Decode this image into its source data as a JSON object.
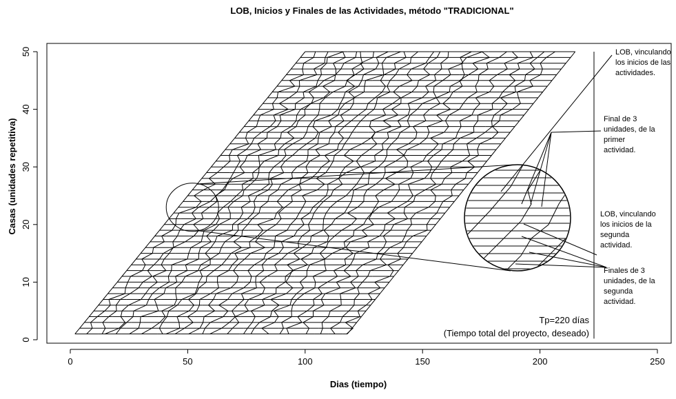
{
  "chart_data": {
    "type": "line",
    "title": "LOB, Inicios y Finales de las Actividades, método \"TRADICIONAL\"",
    "xlabel": "Dias (tiempo)",
    "ylabel": "Casas (unidades repetitiva)",
    "xlim": [
      -10,
      255
    ],
    "ylim": [
      -1,
      51
    ],
    "xticks": [
      0,
      50,
      100,
      150,
      200,
      250
    ],
    "yticks": [
      0,
      10,
      20,
      30,
      40,
      50
    ],
    "grid": false,
    "units": {
      "y_start": 1,
      "y_end": 50
    },
    "activities_start": [
      {
        "x_first": 2,
        "x_last": 100
      },
      {
        "x_first": 7,
        "x_last": 105
      },
      {
        "x_first": 12,
        "x_last": 110
      },
      {
        "x_first": 17,
        "x_last": 114
      },
      {
        "x_first": 22,
        "x_last": 118
      },
      {
        "x_first": 27,
        "x_last": 122
      },
      {
        "x_first": 32,
        "x_last": 126
      },
      {
        "x_first": 37,
        "x_last": 130
      },
      {
        "x_first": 42,
        "x_last": 134
      },
      {
        "x_first": 47,
        "x_last": 138
      },
      {
        "x_first": 52,
        "x_last": 143
      },
      {
        "x_first": 57,
        "x_last": 148
      },
      {
        "x_first": 62,
        "x_last": 153
      },
      {
        "x_first": 67,
        "x_last": 158
      },
      {
        "x_first": 72,
        "x_last": 163
      },
      {
        "x_first": 77,
        "x_last": 168
      },
      {
        "x_first": 82,
        "x_last": 173
      },
      {
        "x_first": 87,
        "x_last": 178
      },
      {
        "x_first": 92,
        "x_last": 184
      },
      {
        "x_first": 98,
        "x_last": 190
      },
      {
        "x_first": 104,
        "x_last": 196
      },
      {
        "x_first": 110,
        "x_last": 201
      },
      {
        "x_first": 116,
        "x_last": 206
      }
    ],
    "last_activity_end": {
      "x_first": 118,
      "x_last": 215
    },
    "annotations": [
      {
        "lines": [
          "LOB, vinculando",
          "los  inicios de las",
          "actividades."
        ]
      },
      {
        "lines": [
          "Final de 3",
          "unidades, de la",
          "primer",
          "actividad."
        ]
      },
      {
        "lines": [
          "LOB, vinculando",
          "los inicios de la",
          "segunda",
          "actividad."
        ]
      },
      {
        "lines": [
          "Finales de 3",
          "unidades, de la",
          "segunda",
          "actividad."
        ]
      }
    ],
    "total_time": {
      "label": "Tp=220 días",
      "note": "(Tiempo total del proyecto, deseado)",
      "x": 223
    },
    "zoom": {
      "center": [
        52,
        23
      ]
    }
  }
}
